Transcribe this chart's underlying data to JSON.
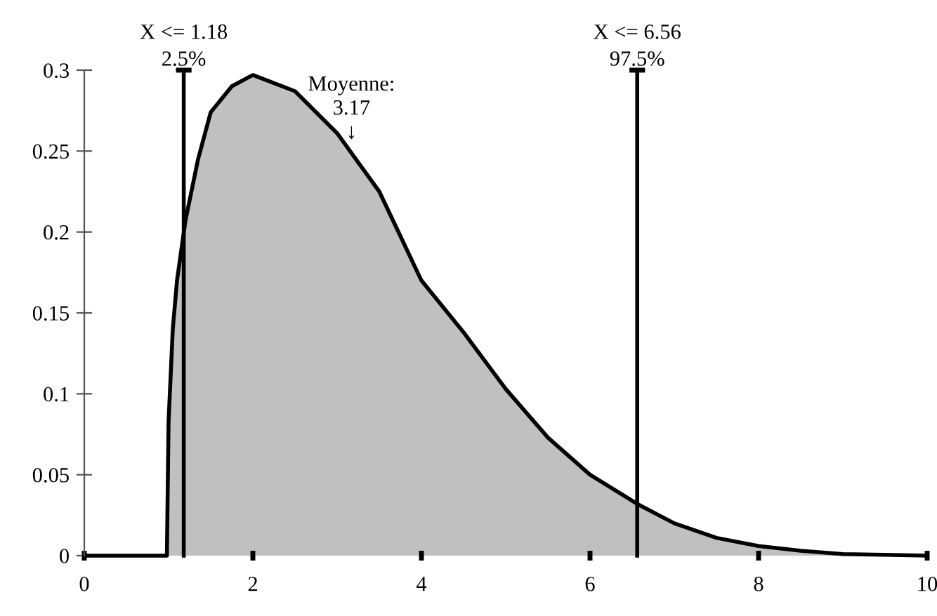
{
  "chart_data": {
    "type": "area",
    "x": [
      0,
      0.98,
      1.0,
      1.05,
      1.1,
      1.2,
      1.35,
      1.5,
      1.75,
      2.0,
      2.5,
      3.0,
      3.5,
      4.0,
      4.5,
      5.0,
      5.5,
      6.0,
      6.56,
      7.0,
      7.5,
      8.0,
      8.5,
      9.0,
      10
    ],
    "series": [
      {
        "color": "#c0c0c0",
        "values": [
          0,
          0,
          0.083,
          0.14,
          0.17,
          0.207,
          0.245,
          0.274,
          0.29,
          0.297,
          0.287,
          0.261,
          0.225,
          0.17,
          0.138,
          0.103,
          0.073,
          0.05,
          0.032,
          0.02,
          0.011,
          0.006,
          0.003,
          0.001,
          0
        ]
      }
    ],
    "xlim": [
      0,
      10
    ],
    "ylim": [
      0,
      0.3
    ],
    "xticks": [
      0,
      2,
      4,
      6,
      8,
      10
    ],
    "yticks": [
      0,
      0.05,
      0.1,
      0.15,
      0.2,
      0.25,
      0.3
    ],
    "ref_lines": [
      {
        "axis": "x",
        "value": 1.18,
        "label": "X <= 1.18\n2.5%",
        "color": "#000000"
      },
      {
        "axis": "x",
        "value": 6.56,
        "label": "X <= 6.56\n97.5%",
        "color": "#000000"
      }
    ],
    "annotations": [
      {
        "text": "Moyenne:\n3.17\n↓",
        "x": 3.17,
        "y": 0.255
      }
    ],
    "grid": false,
    "legend": false
  }
}
